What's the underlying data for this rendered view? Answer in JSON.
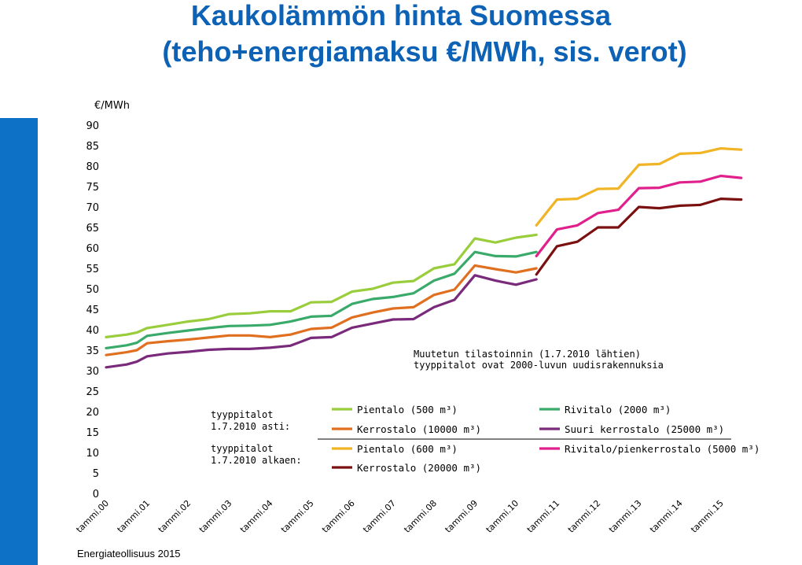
{
  "header": {
    "title_line1": "Kaukolämmön hinta Suomessa",
    "title_line2": "(teho+energiamaksu €/MWh, sis. verot)"
  },
  "source": "Energiateollisuus 2015",
  "notes": {
    "stat_change_line1": "Muutetun tilastoinnin (1.7.2010 lähtien)",
    "stat_change_line2": "tyyppitalot ovat 2000-luvun uudisrakennuksia",
    "until_line1": "tyyppitalot",
    "until_line2": "1.7.2010 asti:",
    "from_line1": "tyyppitalot",
    "from_line2": "1.7.2010 alkaen:"
  },
  "chart_data": {
    "type": "line",
    "title": "Kaukolämmön hinta Suomessa (teho+energiamaksu €/MWh, sis. verot)",
    "ylabel": "€/MWh",
    "ylim": [
      0,
      90
    ],
    "yticks": [
      0,
      5,
      10,
      15,
      20,
      25,
      30,
      35,
      40,
      45,
      50,
      55,
      60,
      65,
      70,
      75,
      80,
      85,
      90
    ],
    "xlim": [
      2000,
      2015.6
    ],
    "x_tick_labels": [
      "tammi.00",
      "tammi.01",
      "tammi.02",
      "tammi.03",
      "tammi.04",
      "tammi.05",
      "tammi.06",
      "tammi.07",
      "tammi.08",
      "tammi.09",
      "tammi.10",
      "tammi.11",
      "tammi.12",
      "tammi.13",
      "tammi.14",
      "tammi.15"
    ],
    "grid": false,
    "legend_position": "bottom-right",
    "series": [
      {
        "name": "Pientalo (500 m³)",
        "color": "#9acd3c",
        "x": [
          2000,
          2000.5,
          2000.75,
          2001,
          2001.5,
          2002,
          2002.5,
          2003,
          2003.5,
          2004,
          2004.5,
          2005,
          2005.5,
          2006,
          2006.5,
          2007,
          2007.5,
          2008,
          2008.5,
          2009,
          2009.5,
          2010,
          2010.5
        ],
        "y": [
          38.2,
          38.8,
          39.3,
          40.4,
          41.2,
          42.0,
          42.6,
          43.8,
          44.0,
          44.5,
          44.5,
          46.7,
          46.8,
          49.3,
          50.0,
          51.5,
          51.9,
          55.0,
          56.0,
          62.3,
          61.3,
          62.5,
          63.2
        ]
      },
      {
        "name": "Rivitalo (2000 m³)",
        "color": "#3aaa6a",
        "x": [
          2000,
          2000.5,
          2000.75,
          2001,
          2001.5,
          2002,
          2002.5,
          2003,
          2003.5,
          2004,
          2004.5,
          2005,
          2005.5,
          2006,
          2006.5,
          2007,
          2007.5,
          2008,
          2008.5,
          2009,
          2009.5,
          2010,
          2010.5
        ],
        "y": [
          35.5,
          36.2,
          36.8,
          38.5,
          39.2,
          39.8,
          40.4,
          40.9,
          41.0,
          41.2,
          42.0,
          43.2,
          43.4,
          46.3,
          47.5,
          48.0,
          48.9,
          52.0,
          53.7,
          59.0,
          58.0,
          57.9,
          59.0
        ]
      },
      {
        "name": "Kerrostalo (10000 m³)",
        "color": "#e07020",
        "x": [
          2000,
          2000.5,
          2000.75,
          2001,
          2001.5,
          2002,
          2002.5,
          2003,
          2003.5,
          2004,
          2004.5,
          2005,
          2005.5,
          2006,
          2006.5,
          2007,
          2007.5,
          2008,
          2008.5,
          2009,
          2009.5,
          2010,
          2010.5
        ],
        "y": [
          33.8,
          34.5,
          35.0,
          36.7,
          37.2,
          37.6,
          38.1,
          38.6,
          38.6,
          38.2,
          38.8,
          40.2,
          40.5,
          43.0,
          44.2,
          45.2,
          45.5,
          48.5,
          49.8,
          55.7,
          54.8,
          54.0,
          55.0
        ]
      },
      {
        "name": "Suuri kerrostalo (25000 m³)",
        "color": "#7a2a7a",
        "x": [
          2000,
          2000.5,
          2000.75,
          2001,
          2001.5,
          2002,
          2002.5,
          2003,
          2003.5,
          2004,
          2004.5,
          2005,
          2005.5,
          2006,
          2006.5,
          2007,
          2007.5,
          2008,
          2008.5,
          2009,
          2009.5,
          2010,
          2010.5
        ],
        "y": [
          30.8,
          31.5,
          32.2,
          33.5,
          34.2,
          34.6,
          35.1,
          35.3,
          35.3,
          35.6,
          36.1,
          38.0,
          38.2,
          40.5,
          41.5,
          42.5,
          42.6,
          45.5,
          47.3,
          53.3,
          52.0,
          51.0,
          52.3
        ]
      },
      {
        "name": "Pientalo (600 m³)",
        "color": "#f0b424",
        "x": [
          2010.5,
          2011,
          2011.5,
          2012,
          2012.5,
          2013,
          2013.5,
          2014,
          2014.5,
          2015,
          2015.5
        ],
        "y": [
          65.5,
          71.8,
          72.0,
          74.4,
          74.5,
          80.3,
          80.5,
          83.0,
          83.2,
          84.3,
          84.0
        ]
      },
      {
        "name": "Rivitalo/pienkerrostalo (5000 m³)",
        "color": "#e0208c",
        "x": [
          2010.5,
          2011,
          2011.5,
          2012,
          2012.5,
          2013,
          2013.5,
          2014,
          2014.5,
          2015,
          2015.5
        ],
        "y": [
          58.0,
          64.5,
          65.5,
          68.5,
          69.3,
          74.6,
          74.7,
          76.0,
          76.2,
          77.6,
          77.1
        ]
      },
      {
        "name": "Kerrostalo (20000 m³)",
        "color": "#7a1010",
        "x": [
          2010.5,
          2011,
          2011.5,
          2012,
          2012.5,
          2013,
          2013.5,
          2014,
          2014.5,
          2015,
          2015.5
        ],
        "y": [
          53.5,
          60.4,
          61.5,
          65.0,
          65.0,
          70.0,
          69.7,
          70.3,
          70.5,
          72.0,
          71.8
        ]
      }
    ],
    "legend_layout": [
      {
        "series": 0,
        "col": 0,
        "row": 0
      },
      {
        "series": 1,
        "col": 1,
        "row": 0
      },
      {
        "series": 2,
        "col": 0,
        "row": 1
      },
      {
        "series": 3,
        "col": 1,
        "row": 1
      },
      {
        "series": 4,
        "col": 0,
        "row": 2
      },
      {
        "series": 5,
        "col": 1,
        "row": 2
      },
      {
        "series": 6,
        "col": 0,
        "row": 3
      }
    ]
  }
}
